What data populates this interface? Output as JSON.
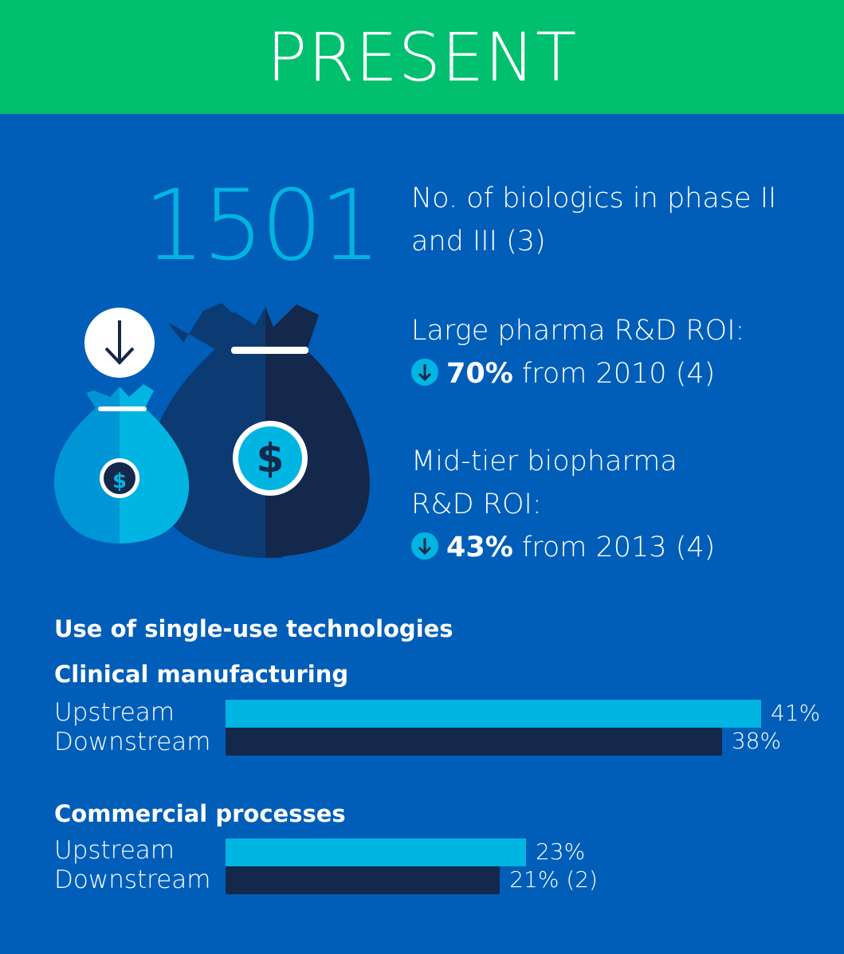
{
  "header": {
    "title": "PRESENT"
  },
  "stats": {
    "biologics_number": "1501",
    "biologics_line1": "No. of biologics in phase II",
    "biologics_line2": "and III (3)",
    "large_label": "Large pharma R&D ROI:",
    "large_value": "70%",
    "large_rest": "from 2010 (4)",
    "mid_line1": "Mid-tier biopharma",
    "mid_line2": "R&D ROI:",
    "mid_value": "43%",
    "mid_rest": "from 2013 (4)"
  },
  "icons": [
    "arrow-down-icon",
    "money-bag-icon",
    "dollar-icon"
  ],
  "colors": {
    "header": "#00bf6f",
    "background": "#005eb8",
    "upstream": "#00b5e2",
    "downstream": "#14284b"
  },
  "chart_data": {
    "type": "bar",
    "orientation": "horizontal",
    "title": "Use of single-use technologies",
    "groups": [
      {
        "name": "Clinical manufacturing",
        "categories": [
          "Upstream",
          "Downstream"
        ],
        "values": [
          41,
          38
        ],
        "labels": [
          "41%",
          "38%"
        ]
      },
      {
        "name": "Commercial processes",
        "categories": [
          "Upstream",
          "Downstream"
        ],
        "values": [
          23,
          21
        ],
        "labels": [
          "23%",
          "21% (2)"
        ]
      }
    ],
    "unit": "%"
  }
}
